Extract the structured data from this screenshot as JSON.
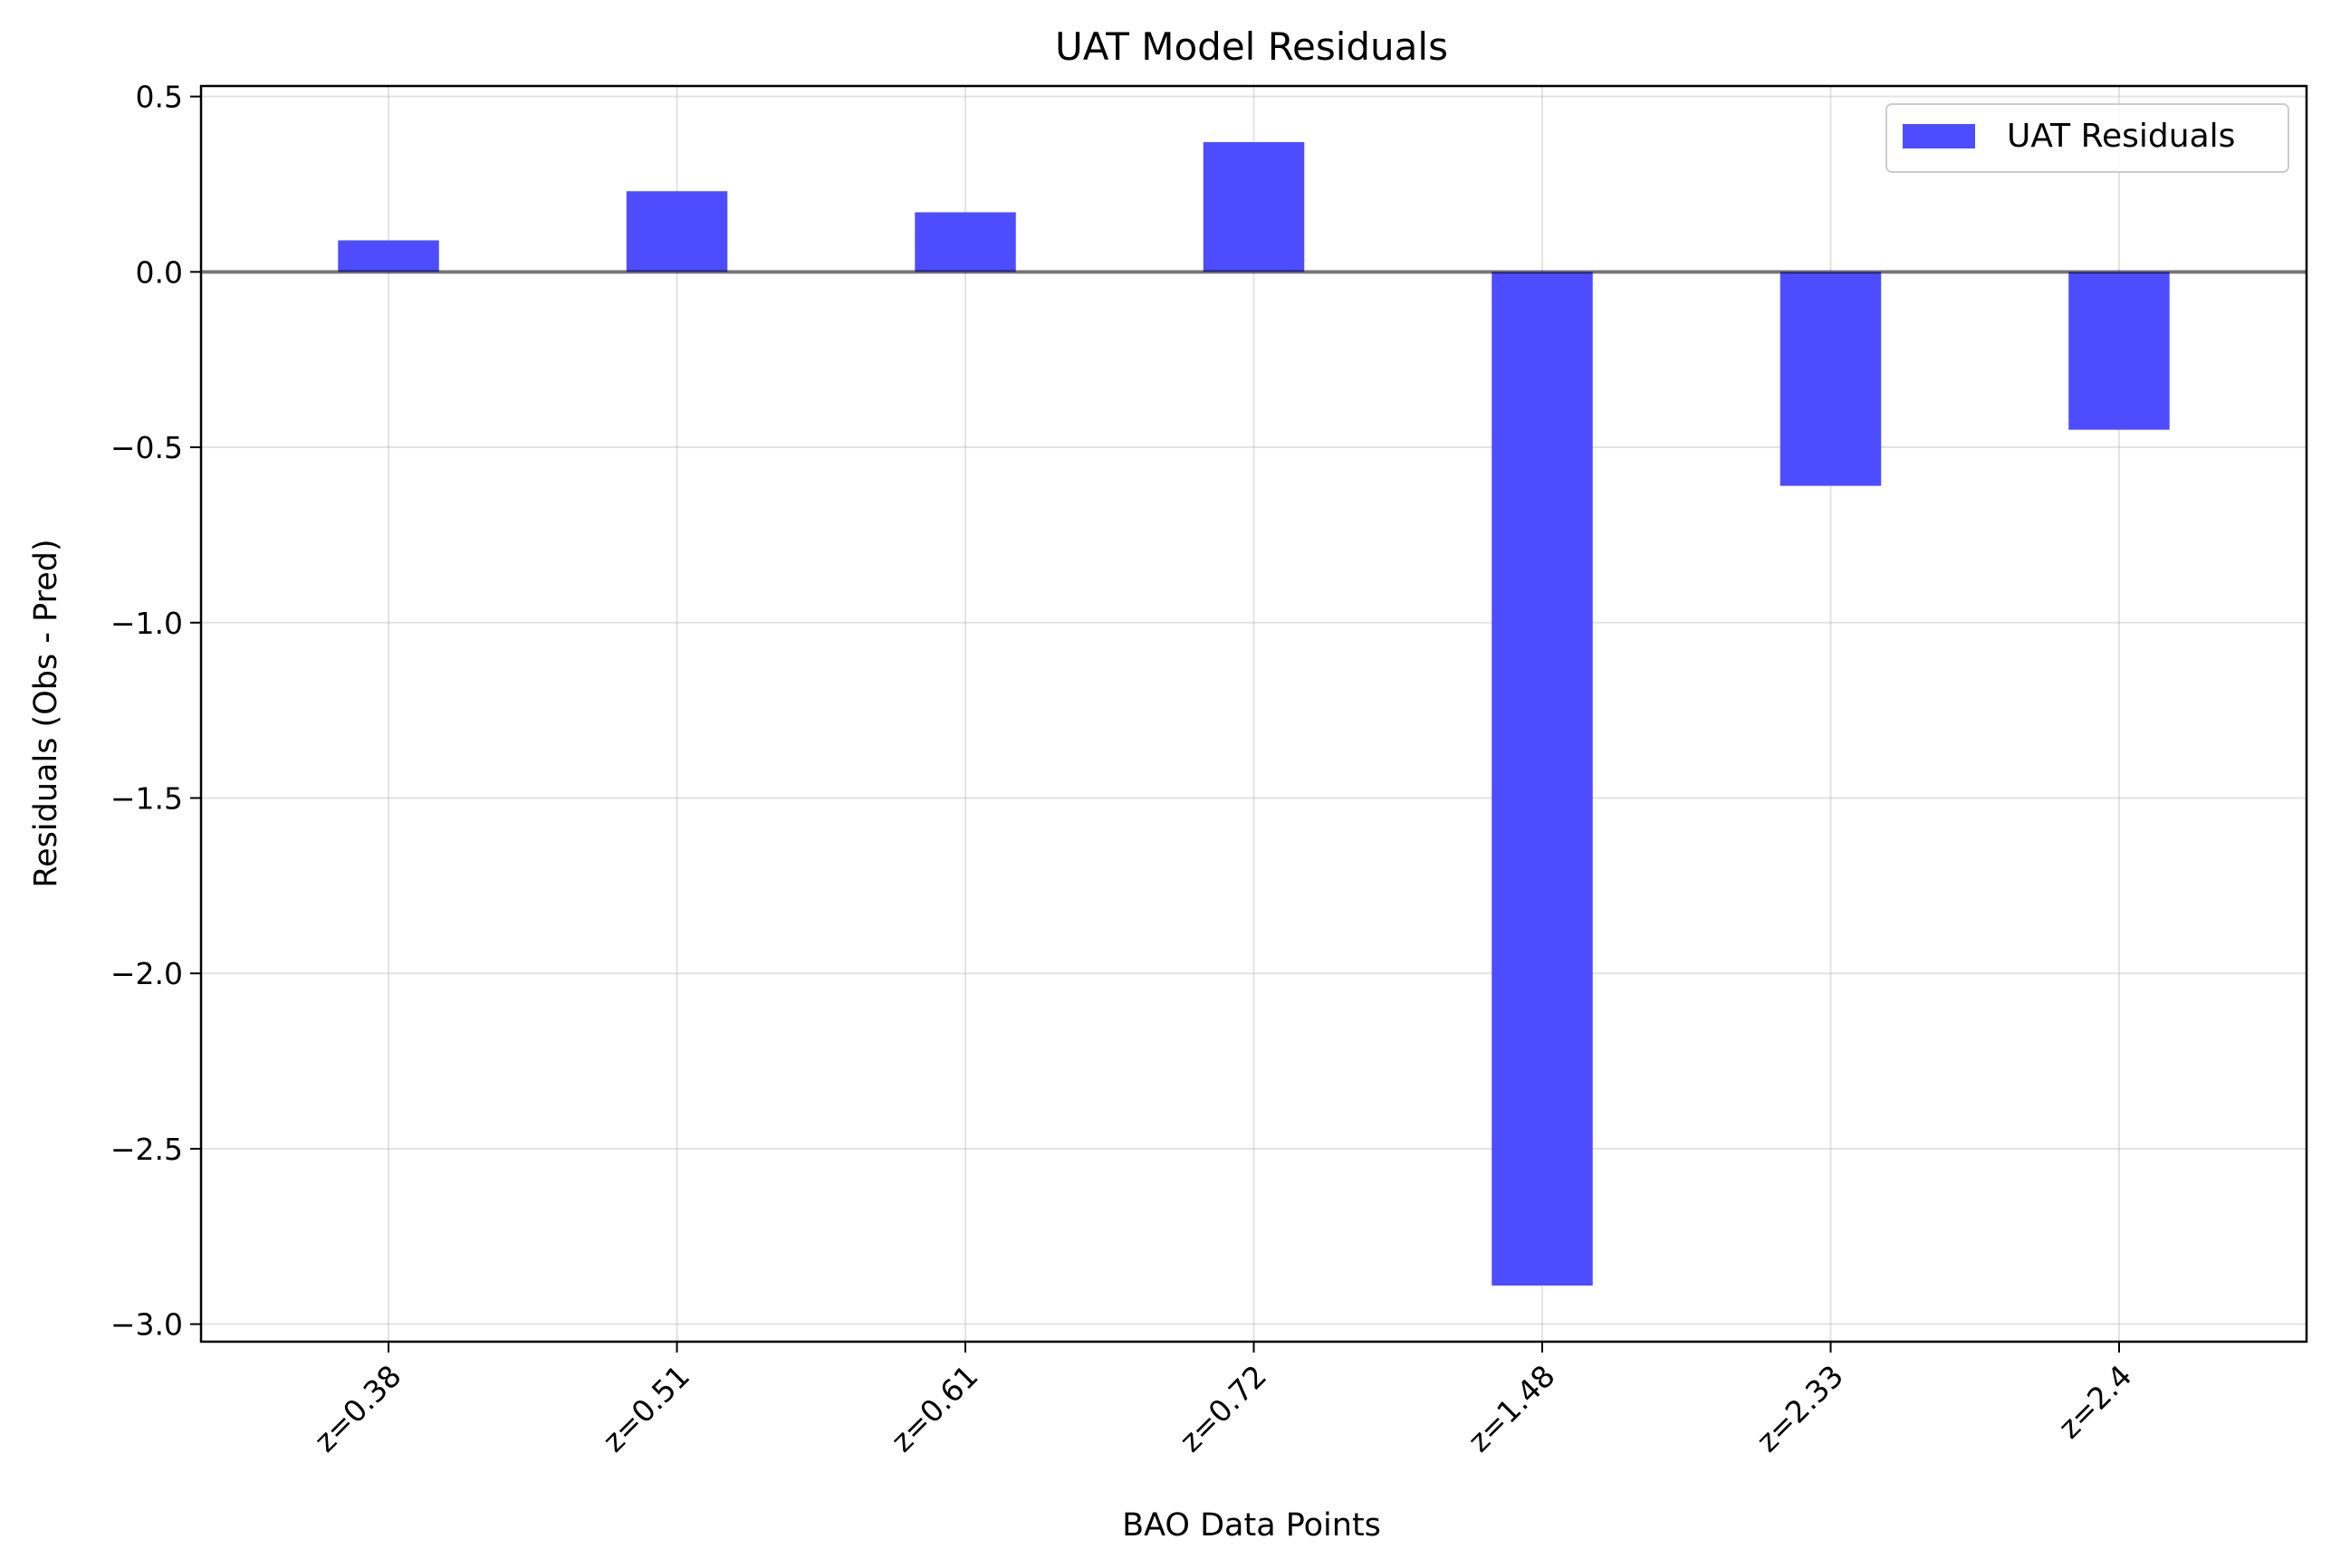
{
  "chart_data": {
    "type": "bar",
    "title": "UAT Model Residuals",
    "xlabel": "BAO Data Points",
    "ylabel": "Residuals (Obs - Pred)",
    "categories": [
      "z=0.38",
      "z=0.51",
      "z=0.61",
      "z=0.72",
      "z=1.48",
      "z=2.33",
      "z=2.4"
    ],
    "series": [
      {
        "name": "UAT Residuals",
        "values": [
          0.09,
          0.23,
          0.17,
          0.37,
          -2.89,
          -0.61,
          -0.45
        ],
        "color": "#4d4dff"
      }
    ],
    "ylim": [
      -3.05,
      0.53
    ],
    "yticks": [
      0.5,
      0.0,
      -0.5,
      -1.0,
      -1.5,
      -2.0,
      -2.5,
      -3.0
    ],
    "ytick_labels": [
      "0.5",
      "0.0",
      "−0.5",
      "−1.0",
      "−1.5",
      "−2.0",
      "−2.5",
      "−3.0"
    ],
    "grid": true,
    "zero_line": true,
    "legend_position": "top-right"
  }
}
